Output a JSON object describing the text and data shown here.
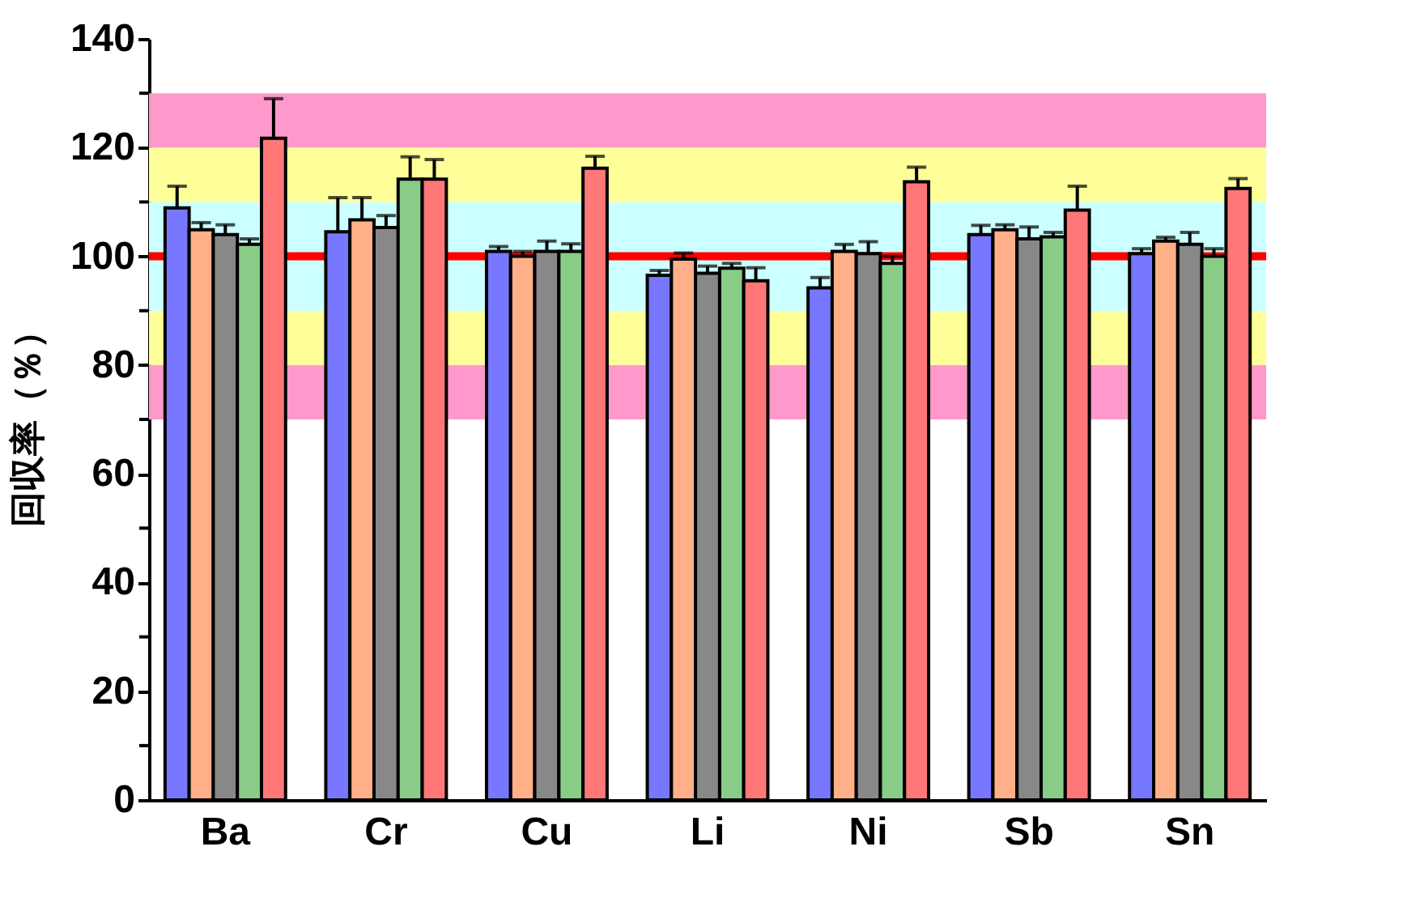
{
  "chart_data": {
    "type": "bar",
    "ylabel": "回収率（％）",
    "categories": [
      "Ba",
      "Cr",
      "Cu",
      "Li",
      "Ni",
      "Sb",
      "Sn"
    ],
    "series": [
      {
        "color": "#7777ff",
        "values": [
          108.9,
          104.5,
          100.9,
          96.5,
          94.2,
          104.0,
          100.5
        ],
        "errors": [
          4.0,
          6.3,
          0.9,
          0.9,
          1.9,
          1.7,
          0.9
        ]
      },
      {
        "color": "#ffb088",
        "values": [
          104.9,
          106.7,
          100.0,
          99.5,
          100.9,
          104.9,
          102.8
        ],
        "errors": [
          1.3,
          4.1,
          0.9,
          1.1,
          1.3,
          0.9,
          0.7
        ]
      },
      {
        "color": "#888888",
        "values": [
          104.0,
          105.3,
          100.9,
          96.9,
          100.5,
          103.2,
          102.2
        ],
        "errors": [
          1.8,
          2.2,
          1.9,
          1.3,
          2.2,
          2.2,
          2.2
        ]
      },
      {
        "color": "#88cc88",
        "values": [
          102.2,
          114.2,
          100.9,
          97.8,
          98.7,
          103.6,
          100.0
        ],
        "errors": [
          1.0,
          4.1,
          1.4,
          0.9,
          1.3,
          0.8,
          1.4
        ]
      },
      {
        "color": "#ff7777",
        "values": [
          121.7,
          114.2,
          116.2,
          95.5,
          113.7,
          108.5,
          112.5
        ],
        "errors": [
          7.3,
          3.6,
          2.2,
          2.4,
          2.7,
          4.4,
          1.8
        ]
      }
    ],
    "ylim": [
      0,
      140
    ],
    "yticks": [
      0,
      {
        "value": 10,
        "label": null
      },
      20,
      {
        "value": 30,
        "label": null
      },
      40,
      {
        "value": 50,
        "label": null
      },
      60,
      {
        "value": 70,
        "label": null
      },
      80,
      {
        "value": 90,
        "label": null
      },
      100,
      {
        "value": 110,
        "label": null
      },
      120,
      {
        "value": 130,
        "label": null
      },
      140
    ],
    "bands": [
      {
        "axis": "y",
        "from": 70,
        "to": 80,
        "color": "#ff99cc"
      },
      {
        "axis": "y",
        "from": 80,
        "to": 90,
        "color": "#ffff99"
      },
      {
        "axis": "y",
        "from": 90,
        "to": 110,
        "color": "#ccffff"
      },
      {
        "axis": "y",
        "from": 110,
        "to": 120,
        "color": "#ffff99"
      },
      {
        "axis": "y",
        "from": 120,
        "to": 130,
        "color": "#ff99cc"
      }
    ],
    "ref_lines": [
      {
        "axis": "y",
        "value": 100,
        "color": "#ff0000"
      }
    ],
    "grid": false
  }
}
